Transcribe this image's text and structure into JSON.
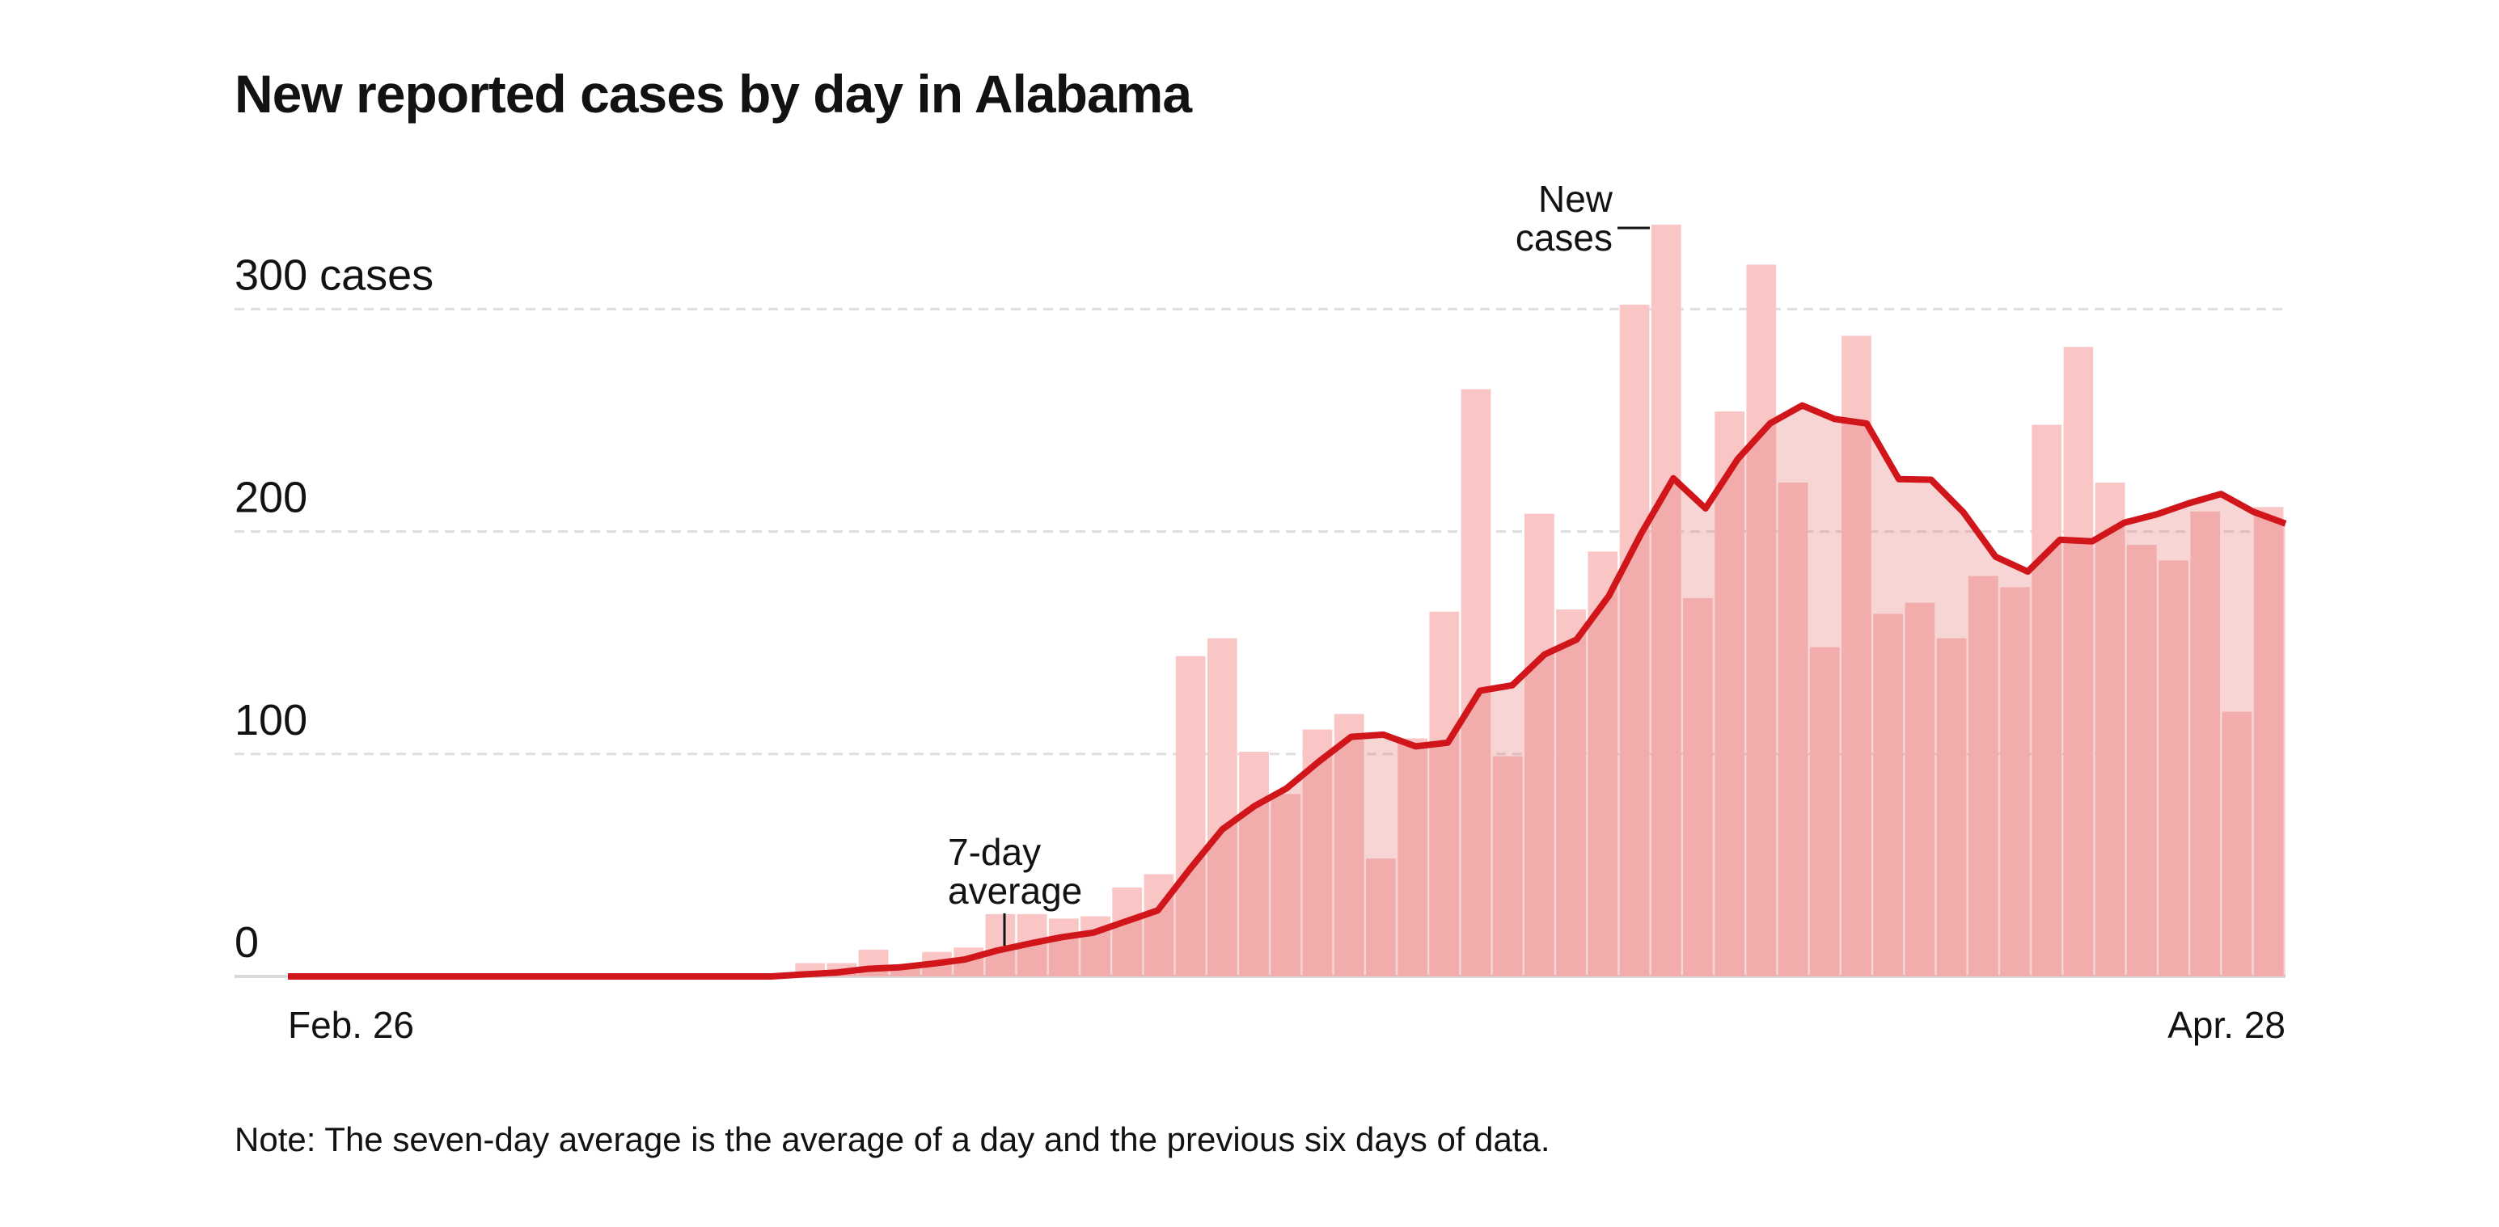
{
  "chart_data": {
    "type": "bar",
    "title": "New reported cases by day in Alabama",
    "note": "Note: The seven-day average is the average of a day and the previous six days of data.",
    "categories": [
      "Feb. 26",
      null,
      null,
      null,
      null,
      null,
      null,
      null,
      null,
      null,
      null,
      null,
      null,
      null,
      null,
      null,
      null,
      null,
      null,
      null,
      null,
      null,
      null,
      null,
      null,
      null,
      null,
      null,
      null,
      null,
      null,
      null,
      null,
      null,
      null,
      null,
      null,
      null,
      null,
      null,
      null,
      null,
      null,
      null,
      null,
      null,
      null,
      null,
      null,
      null,
      null,
      null,
      null,
      null,
      null,
      null,
      null,
      null,
      null,
      null,
      null,
      null,
      "Apr. 28"
    ],
    "series": [
      {
        "name": "New cases",
        "color": "#f9c5c5",
        "values": [
          0,
          0,
          0,
          0,
          0,
          0,
          0,
          0,
          0,
          0,
          0,
          0,
          0,
          0,
          0,
          0,
          6,
          6,
          12,
          5,
          11,
          13,
          28,
          28,
          26,
          27,
          40,
          46,
          144,
          152,
          101,
          82,
          111,
          118,
          53,
          107,
          164,
          264,
          99,
          208,
          165,
          191,
          302,
          338,
          170,
          254,
          320,
          222,
          148,
          288,
          163,
          168,
          152,
          180,
          175,
          248,
          283,
          222,
          194,
          187,
          209,
          119,
          211
        ]
      },
      {
        "name": "7-day average",
        "color": "#d0161b",
        "values": [
          0,
          0,
          0,
          0,
          0,
          0,
          0,
          0,
          0,
          0,
          0,
          0,
          0,
          0,
          0,
          0,
          0.9,
          1.7,
          3.4,
          4.1,
          5.7,
          7.6,
          11.6,
          14.7,
          17.6,
          19.7,
          24.7,
          29.7,
          48.4,
          66.1,
          76.6,
          84.6,
          96.6,
          107.7,
          108.7,
          103.4,
          105.1,
          128.4,
          130.9,
          144.7,
          151.4,
          171.1,
          199,
          223.9,
          210.4,
          232.6,
          248.6,
          256.7,
          250.6,
          248.6,
          223.6,
          223.3,
          208.7,
          188.7,
          182,
          196.3,
          195.6,
          204,
          207.7,
          212.7,
          216.9,
          208.9,
          203.6
        ]
      }
    ],
    "ylim": [
      0,
      340
    ],
    "yticks": [
      0,
      100,
      200,
      {
        "value": 300,
        "label": "300 cases"
      }
    ],
    "grid": true
  }
}
